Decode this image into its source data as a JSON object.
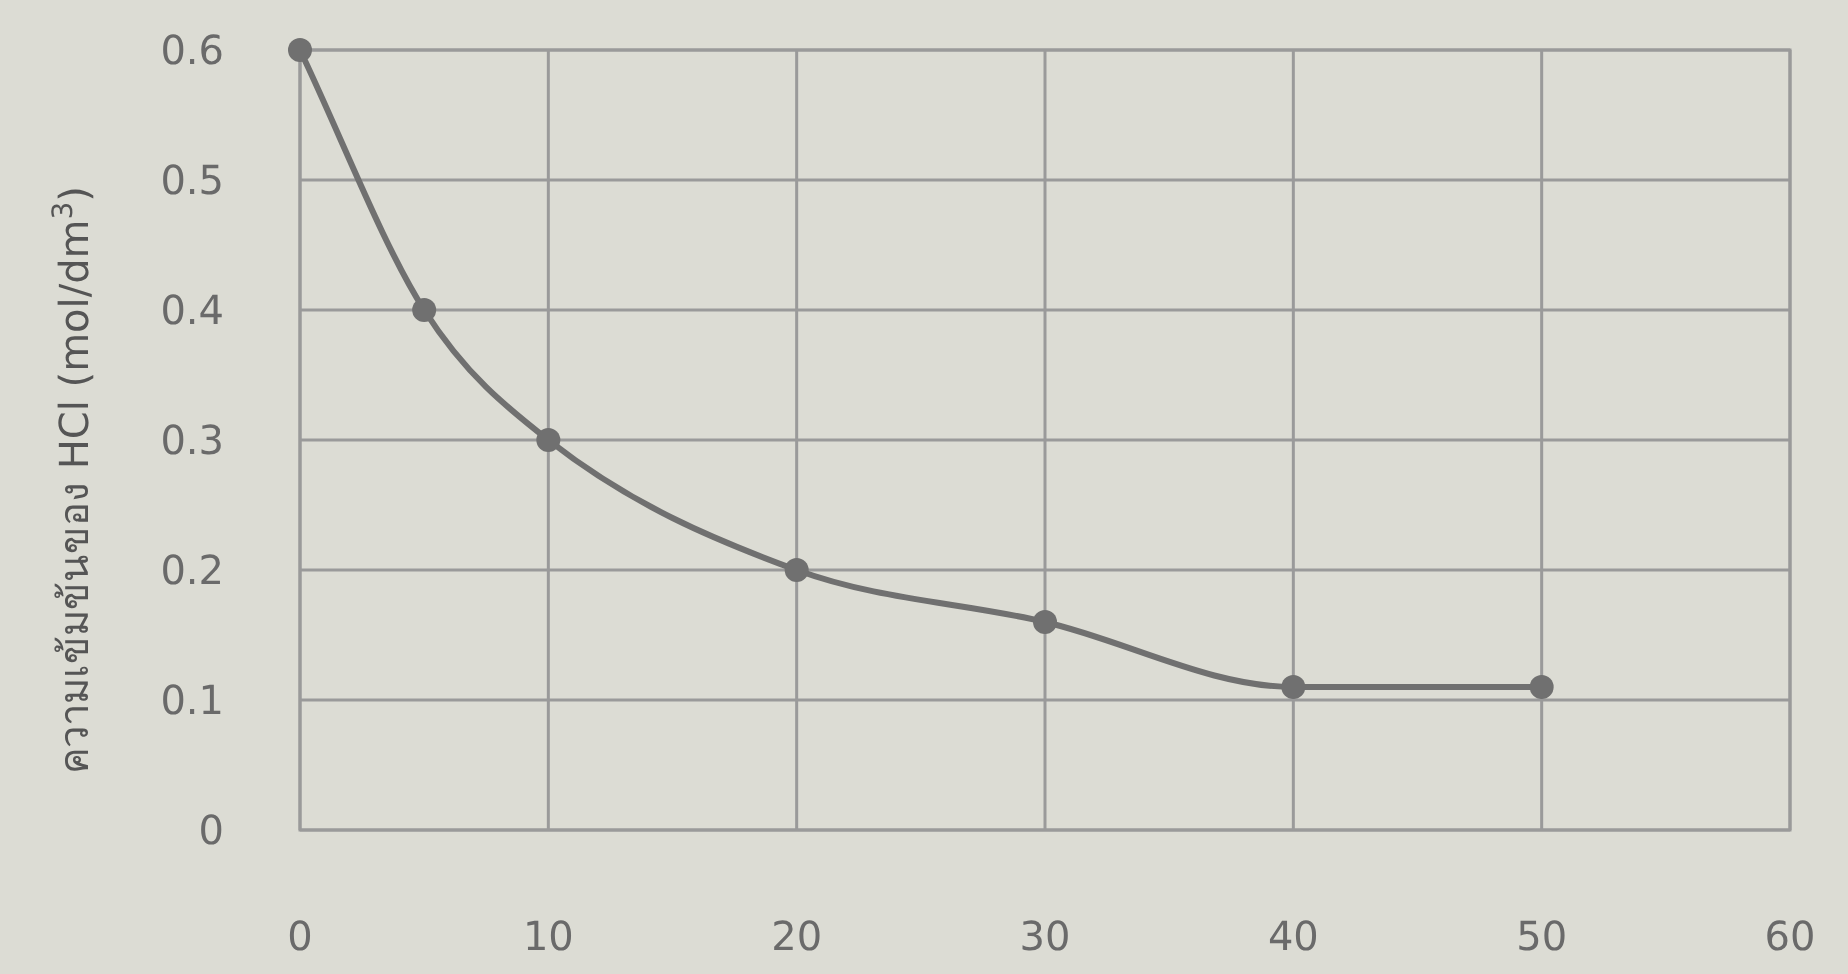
{
  "chart_data": {
    "type": "line",
    "ylabel": "ความเข้มข้นของ HCl (mol/dm$^{3}$)",
    "x": [
      0,
      5,
      10,
      20,
      30,
      40,
      50
    ],
    "series": [
      {
        "color": "#707070",
        "values": [
          0.6,
          0.4,
          0.3,
          0.2,
          0.16,
          0.11,
          0.11
        ]
      }
    ],
    "xlim": [
      0,
      60
    ],
    "ylim": [
      0,
      0.6
    ],
    "xticks": [
      0,
      10,
      20,
      30,
      40,
      50,
      60
    ],
    "yticks": [
      0,
      0.1,
      0.2,
      0.3,
      0.4,
      0.5,
      0.6
    ],
    "grid": true,
    "marker": "circle",
    "line_style": "solid"
  }
}
